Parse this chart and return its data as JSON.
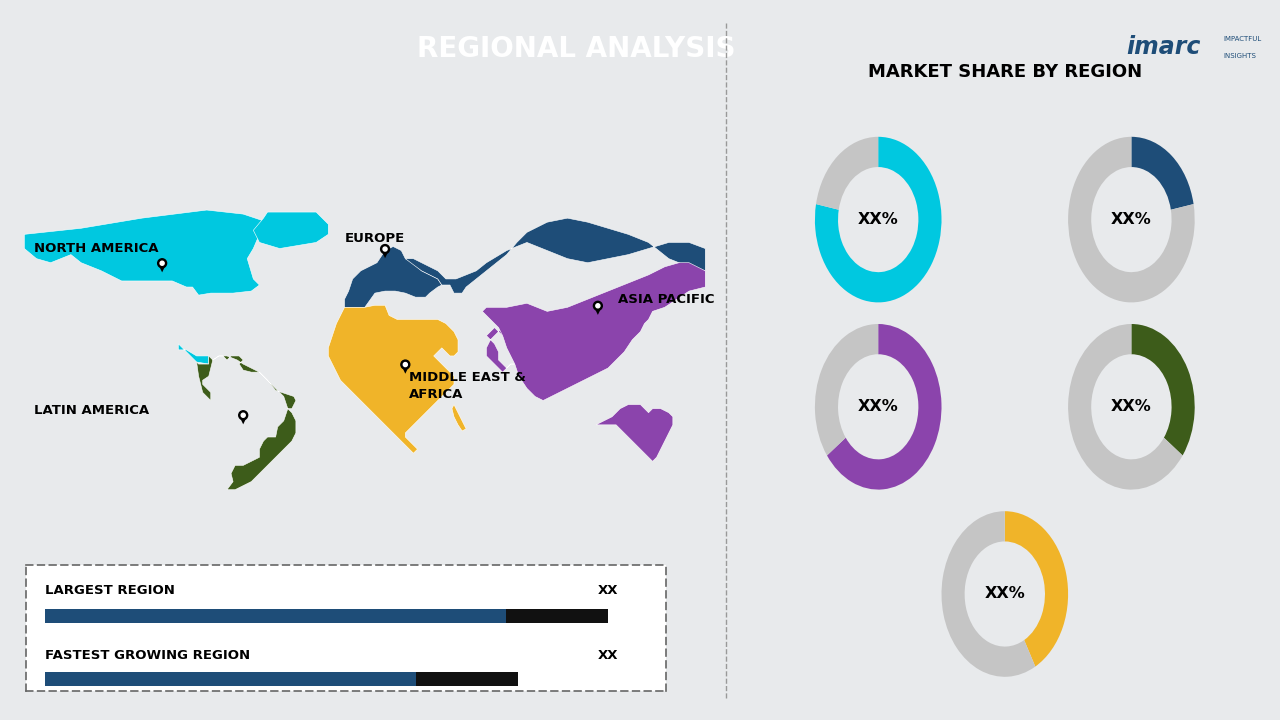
{
  "title": "REGIONAL ANALYSIS",
  "title_bg": "#1e4d78",
  "title_color": "#ffffff",
  "bg_color": "#e8eaec",
  "right_panel_title": "MARKET SHARE BY REGION",
  "regions": [
    {
      "name": "NORTH AMERICA",
      "color": "#00c8e0"
    },
    {
      "name": "EUROPE",
      "color": "#1e4d78"
    },
    {
      "name": "ASIA PACIFIC",
      "color": "#8b44ac"
    },
    {
      "name": "MIDDLE EAST & AFRICA",
      "color": "#f0b429"
    },
    {
      "name": "LATIN AMERICA",
      "color": "#3d5c1a"
    }
  ],
  "donuts": [
    {
      "color": "#00c8e0",
      "value": 0.78,
      "label": "XX%"
    },
    {
      "color": "#1e4d78",
      "value": 0.22,
      "label": "XX%"
    },
    {
      "color": "#8b44ac",
      "value": 0.65,
      "label": "XX%"
    },
    {
      "color": "#3d5c1a",
      "value": 0.35,
      "label": "XX%"
    },
    {
      "color": "#f0b429",
      "value": 0.42,
      "label": "XX%"
    }
  ],
  "donut_gray": "#c5c5c5",
  "legend_label1": "LARGEST REGION",
  "legend_label2": "FASTEST GROWING REGION",
  "legend_val": "XX",
  "bar_color1": "#1e4d78",
  "bar_color2": "#111111",
  "imarc_color": "#1e4d78",
  "divider_color": "#999999"
}
